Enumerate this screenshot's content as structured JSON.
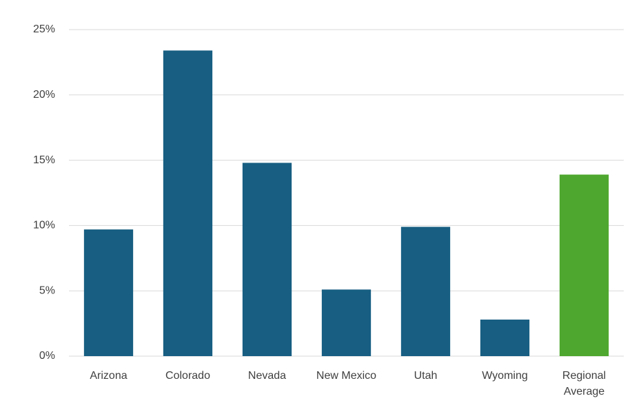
{
  "chart_data": {
    "type": "bar",
    "categories": [
      "Arizona",
      "Colorado",
      "Nevada",
      "New Mexico",
      "Utah",
      "Wyoming",
      "Regional Average"
    ],
    "values": [
      9.7,
      23.4,
      14.8,
      5.1,
      9.9,
      2.8,
      13.9
    ],
    "colors": [
      "#175e82",
      "#175e82",
      "#175e82",
      "#175e82",
      "#175e82",
      "#175e82",
      "#4ea72e"
    ],
    "ylim": [
      0,
      25
    ],
    "yticks": [
      {
        "value": 0,
        "label": "0%"
      },
      {
        "value": 5,
        "label": "5%"
      },
      {
        "value": 10,
        "label": "10%"
      },
      {
        "value": 15,
        "label": "15%"
      },
      {
        "value": 20,
        "label": "20%"
      },
      {
        "value": 25,
        "label": "25%"
      }
    ],
    "grid": true
  }
}
